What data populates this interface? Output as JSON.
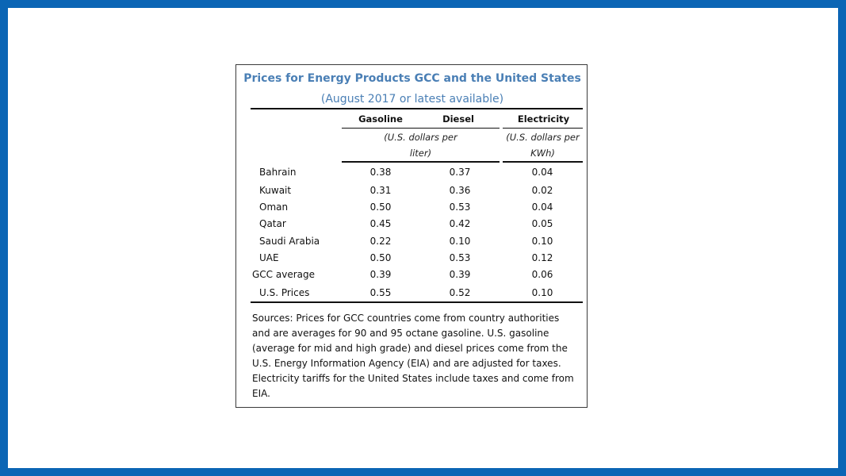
{
  "title": "Prices for Energy Products GCC and the United States",
  "subtitle": "(August 2017 or latest available)",
  "columns": [
    "Gasoline",
    "Diesel",
    "Electricity"
  ],
  "units": {
    "fuel_line1": "(U.S. dollars per",
    "fuel_line2": "liter)",
    "elec_line1": "(U.S. dollars per",
    "elec_line2": "KWh)"
  },
  "rows": [
    {
      "label": "Bahrain",
      "gasoline": "0.38",
      "diesel": "0.37",
      "electricity": "0.04"
    },
    {
      "label": "Kuwait",
      "gasoline": "0.31",
      "diesel": "0.36",
      "electricity": "0.02"
    },
    {
      "label": "Oman",
      "gasoline": "0.50",
      "diesel": "0.53",
      "electricity": "0.04"
    },
    {
      "label": "Qatar",
      "gasoline": "0.45",
      "diesel": "0.42",
      "electricity": "0.05"
    },
    {
      "label": "Saudi Arabia",
      "gasoline": "0.22",
      "diesel": "0.10",
      "electricity": "0.10"
    },
    {
      "label": "UAE",
      "gasoline": "0.50",
      "diesel": "0.53",
      "electricity": "0.12"
    },
    {
      "label": "GCC average",
      "gasoline": "0.39",
      "diesel": "0.39",
      "electricity": "0.06"
    },
    {
      "label": "U.S. Prices",
      "gasoline": "0.55",
      "diesel": "0.52",
      "electricity": "0.10"
    }
  ],
  "sources": "Sources: Prices for GCC countries come from country authorities and are averages for 90 and 95 octane gasoline. U.S. gasoline (average for mid and high grade) and diesel prices come from the U.S. Energy Information Agency (EIA) and are adjusted for taxes. Electricity tariffs for the United States include taxes and come from EIA.",
  "colors": {
    "frame": "#0b65b5",
    "title": "#4a7fb5"
  }
}
